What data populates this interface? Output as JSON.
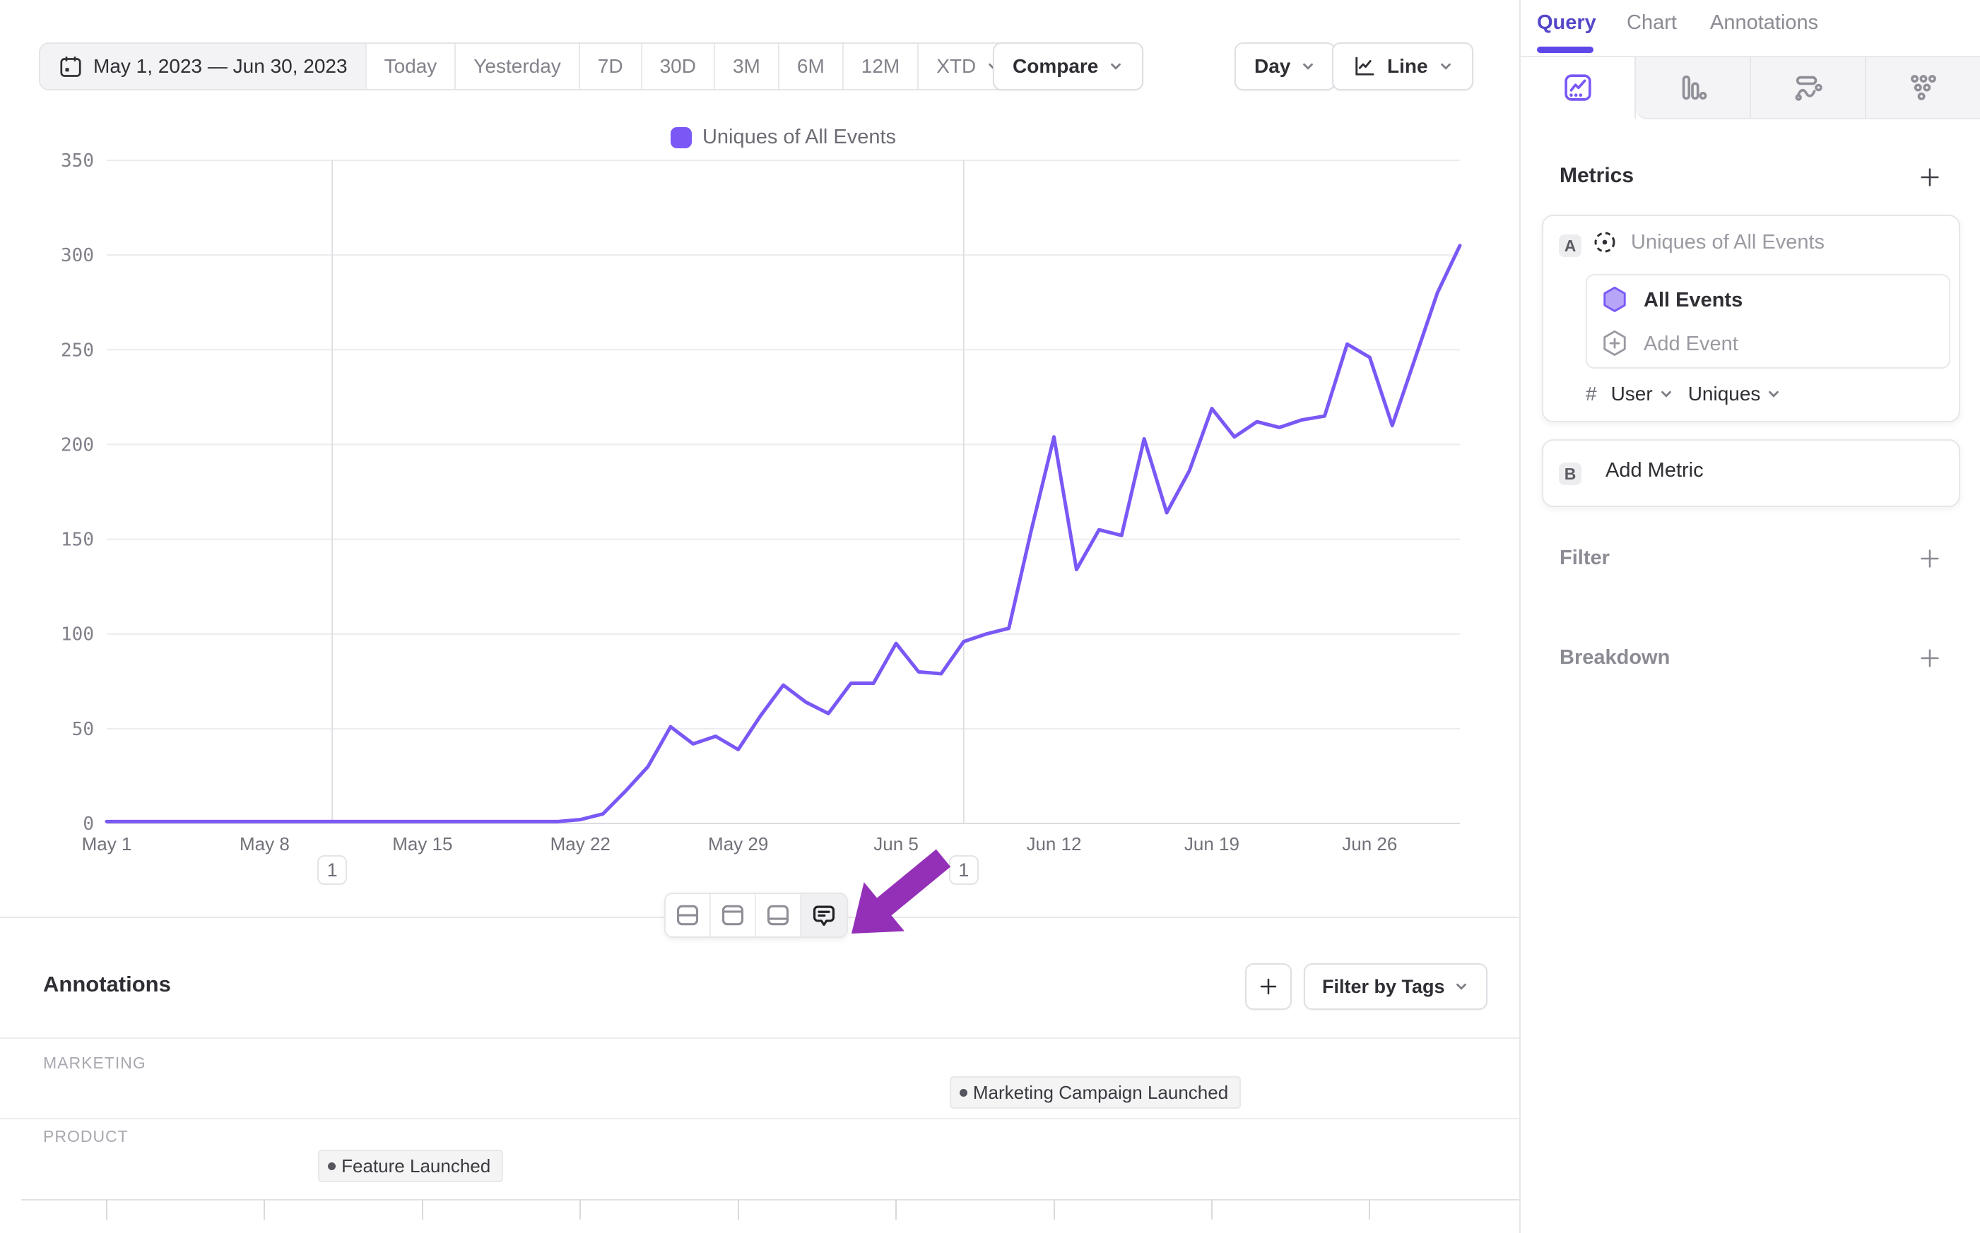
{
  "toolbar": {
    "date_range": "May 1, 2023 — Jun 30, 2023",
    "presets": [
      "Today",
      "Yesterday",
      "7D",
      "30D",
      "3M",
      "6M",
      "12M"
    ],
    "xtd_label": "XTD",
    "compare_label": "Compare",
    "granularity_label": "Day",
    "chart_type_label": "Line"
  },
  "legend": {
    "label": "Uniques of All Events",
    "color": "#7a58f5"
  },
  "chart_data": {
    "type": "line",
    "title": "",
    "series": [
      {
        "name": "Uniques of All Events",
        "color": "#7a58f5",
        "values": [
          1,
          1,
          1,
          1,
          1,
          1,
          1,
          1,
          1,
          1,
          1,
          1,
          1,
          1,
          1,
          1,
          1,
          1,
          1,
          1,
          1,
          2,
          5,
          17,
          30,
          51,
          42,
          46,
          39,
          57,
          73,
          64,
          58,
          74,
          74,
          95,
          80,
          79,
          96,
          100,
          103,
          155,
          204,
          134,
          155,
          152,
          203,
          164,
          186,
          219,
          204,
          212,
          209,
          213,
          215,
          253,
          246,
          210,
          245,
          280,
          305
        ]
      }
    ],
    "x": [
      "May 1",
      "May 2",
      "May 3",
      "May 4",
      "May 5",
      "May 6",
      "May 7",
      "May 8",
      "May 9",
      "May 10",
      "May 11",
      "May 12",
      "May 13",
      "May 14",
      "May 15",
      "May 16",
      "May 17",
      "May 18",
      "May 19",
      "May 20",
      "May 21",
      "May 22",
      "May 23",
      "May 24",
      "May 25",
      "May 26",
      "May 27",
      "May 28",
      "May 29",
      "May 30",
      "May 31",
      "Jun 1",
      "Jun 2",
      "Jun 3",
      "Jun 4",
      "Jun 5",
      "Jun 6",
      "Jun 7",
      "Jun 8",
      "Jun 9",
      "Jun 10",
      "Jun 11",
      "Jun 12",
      "Jun 13",
      "Jun 14",
      "Jun 15",
      "Jun 16",
      "Jun 17",
      "Jun 18",
      "Jun 19",
      "Jun 20",
      "Jun 21",
      "Jun 22",
      "Jun 23",
      "Jun 24",
      "Jun 25",
      "Jun 26",
      "Jun 27",
      "Jun 28",
      "Jun 29",
      "Jun 30"
    ],
    "xticks": [
      {
        "label": "May 1",
        "index": 0
      },
      {
        "label": "May 8",
        "index": 7
      },
      {
        "label": "May 15",
        "index": 14
      },
      {
        "label": "May 22",
        "index": 21
      },
      {
        "label": "May 29",
        "index": 28
      },
      {
        "label": "Jun 5",
        "index": 35
      },
      {
        "label": "Jun 12",
        "index": 42
      },
      {
        "label": "Jun 19",
        "index": 49
      },
      {
        "label": "Jun 26",
        "index": 56
      }
    ],
    "ylim": [
      0,
      350
    ],
    "yticks": [
      0,
      50,
      100,
      150,
      200,
      250,
      300,
      350
    ],
    "grid": "horizontal",
    "legend_position": "top-center",
    "event_markers": [
      {
        "index": 10,
        "count": "1"
      },
      {
        "index": 38,
        "count": "1"
      }
    ]
  },
  "chart_toolbar": {
    "buttons": [
      "split-horizontal",
      "panel-top",
      "panel-bottom",
      "comments"
    ],
    "active": "comments"
  },
  "annotations_panel": {
    "title": "Annotations",
    "add_label": "+",
    "filter_label": "Filter by Tags",
    "groups": [
      {
        "name": "MARKETING",
        "items": [
          {
            "label": "Marketing Campaign Launched",
            "index": 38
          }
        ]
      },
      {
        "name": "PRODUCT",
        "items": [
          {
            "label": "Feature Launched",
            "index": 10
          }
        ]
      }
    ]
  },
  "sidebar": {
    "tabs": [
      {
        "label": "Query",
        "active": true
      },
      {
        "label": "Chart",
        "active": false
      },
      {
        "label": "Annotations",
        "active": false
      }
    ],
    "view_switcher": [
      "insights-line",
      "bar",
      "flow",
      "grid"
    ],
    "active_view": "insights-line",
    "metrics": {
      "heading": "Metrics",
      "add_label": "+",
      "metric_a": {
        "letter": "A",
        "title": "Uniques of All Events",
        "event_label": "All Events",
        "add_event_label": "Add Event",
        "agg_symbol": "#",
        "agg_entity": "User",
        "agg_type": "Uniques"
      },
      "metric_b": {
        "letter": "B",
        "label": "Add Metric"
      }
    },
    "filter": {
      "label": "Filter",
      "add_label": "+"
    },
    "breakdown": {
      "label": "Breakdown",
      "add_label": "+"
    }
  },
  "colors": {
    "accent": "#7a58f5",
    "arrow": "#9430b8",
    "active_tab": "#5447c8"
  }
}
